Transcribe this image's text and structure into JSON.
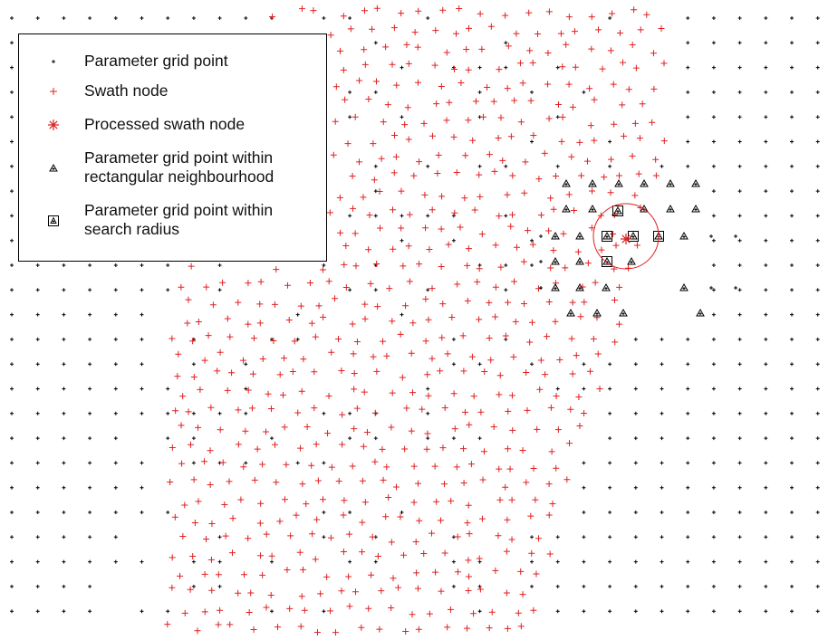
{
  "colors": {
    "grid_point": "#000000",
    "swath_node": "#e02020",
    "processed_node": "#e02020",
    "search_circle": "#e02020",
    "neighbourhood_marker": "#000000"
  },
  "legend": {
    "items": [
      {
        "id": "grid",
        "symbol": "black-plus-icon",
        "label_lines": [
          "Parameter grid point"
        ]
      },
      {
        "id": "swath",
        "symbol": "red-plus-icon",
        "label_lines": [
          "Swath node"
        ]
      },
      {
        "id": "processed",
        "symbol": "red-asterisk-icon",
        "label_lines": [
          "Processed swath node"
        ]
      },
      {
        "id": "rect",
        "symbol": "triangle-marker-icon",
        "label_lines": [
          "Parameter grid point within",
          "rectangular neighbourhood"
        ]
      },
      {
        "id": "radius",
        "symbol": "boxed-triangle-marker-icon",
        "label_lines": [
          "Parameter grid point within",
          "search radius"
        ]
      }
    ]
  }
}
